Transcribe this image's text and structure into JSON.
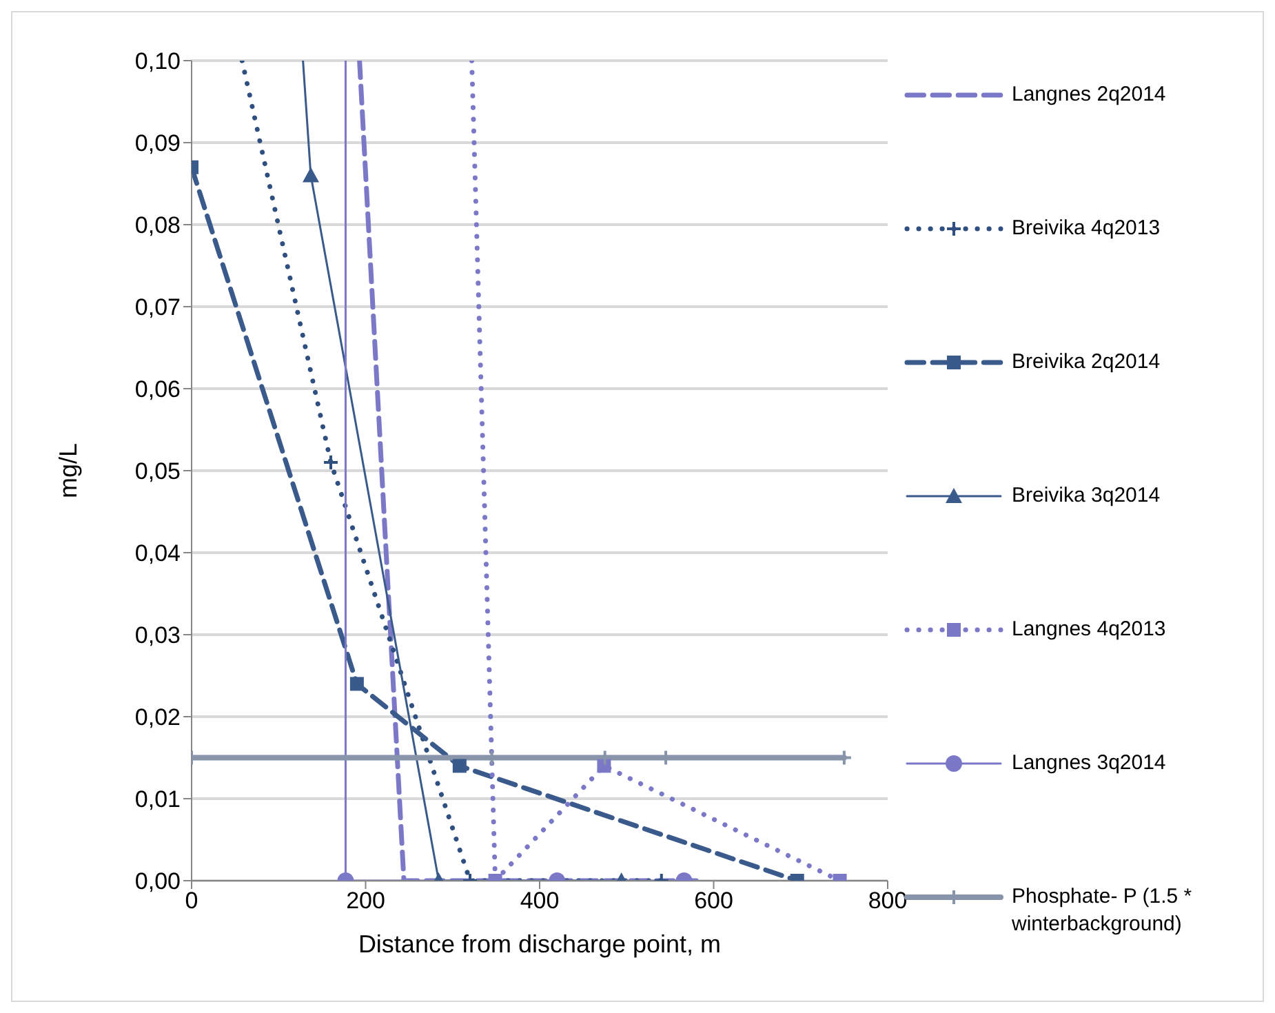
{
  "chart_data": {
    "type": "line",
    "xlabel": "Distance from discharge point, m",
    "ylabel": "mg/L",
    "xlim": [
      0,
      800
    ],
    "xticks": [
      0,
      200,
      400,
      600,
      800
    ],
    "ylim": [
      0,
      0.1
    ],
    "yticks": [
      {
        "value": 0,
        "label": "0,00"
      },
      {
        "value": 0.01,
        "label": "0,01"
      },
      {
        "value": 0.02,
        "label": "0,02"
      },
      {
        "value": 0.03,
        "label": "0,03"
      },
      {
        "value": 0.04,
        "label": "0,04"
      },
      {
        "value": 0.05,
        "label": "0,05"
      },
      {
        "value": 0.06,
        "label": "0,06"
      },
      {
        "value": 0.07,
        "label": "0,07"
      },
      {
        "value": 0.08,
        "label": "0,08"
      },
      {
        "value": 0.09,
        "label": "0,09"
      },
      {
        "value": 0.1,
        "label": "0,10"
      }
    ],
    "grid": "y",
    "legend": "right",
    "series": [
      {
        "name": "Langnes 2q2014",
        "color": "#7b78c8",
        "line_style": "dashed",
        "marker": "none",
        "x": [
          193,
          244,
          580
        ],
        "values": [
          0.1,
          0,
          0
        ]
      },
      {
        "name": "Breivika 4q2013",
        "color": "#2f4f80",
        "line_style": "dotted",
        "marker": "cross",
        "x": [
          58,
          160,
          320,
          540
        ],
        "values": [
          0.1,
          0.051,
          0,
          0
        ]
      },
      {
        "name": "Breivika 2q2014",
        "color": "#3a5a8c",
        "line_style": "dashed",
        "marker": "square",
        "x": [
          0,
          190,
          308,
          696
        ],
        "values": [
          0.087,
          0.024,
          0.014,
          0
        ]
      },
      {
        "name": "Breivika 3q2014",
        "color": "#3a5a8c",
        "line_style": "solid",
        "marker": "triangle",
        "x": [
          128,
          137,
          284,
          494
        ],
        "values": [
          0.1,
          0.086,
          0,
          0
        ]
      },
      {
        "name": "Langnes 4q2013",
        "color": "#7b78c8",
        "line_style": "dotted",
        "marker": "square",
        "x": [
          322,
          349,
          474,
          745
        ],
        "values": [
          0.1,
          0,
          0.014,
          0
        ]
      },
      {
        "name": "Langnes 3q2014",
        "color": "#7b78c8",
        "line_style": "solid",
        "marker": "circle",
        "x": [
          177,
          177,
          420,
          566
        ],
        "values": [
          0.1,
          0,
          0,
          0
        ]
      },
      {
        "name": "Phosphate- P (1.5 * winterbackground)",
        "color": "#8794aa",
        "line_style": "solid",
        "marker": "cross",
        "x": [
          0,
          345,
          475,
          545,
          750
        ],
        "values": [
          0.015,
          0.015,
          0.015,
          0.015,
          0.015
        ]
      }
    ]
  }
}
